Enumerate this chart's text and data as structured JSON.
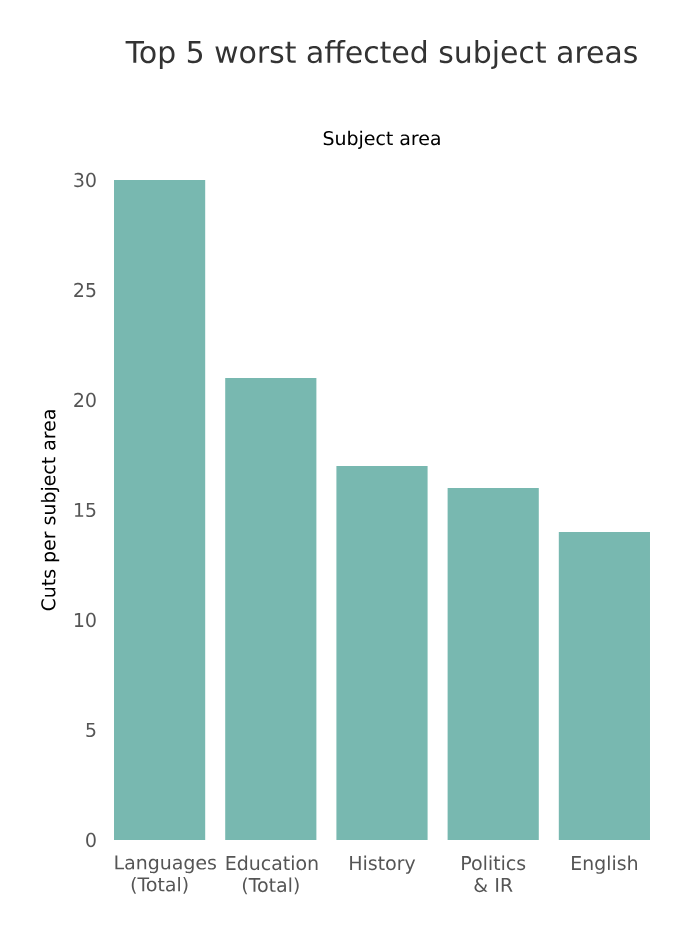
{
  "chart_data": {
    "type": "bar",
    "title": "Top 5 worst affected subject areas",
    "xlabel": "Subject area",
    "ylabel": "Cuts per subject area",
    "categories": [
      "Languages (Total)",
      "Education (Total)",
      "History",
      "Politics & IR",
      "English"
    ],
    "values": [
      30,
      21,
      17,
      16,
      14
    ],
    "color": "#78b8b0",
    "ylim": [
      0,
      30
    ],
    "yticks": [
      0,
      5,
      10,
      15,
      20,
      25,
      30
    ]
  }
}
